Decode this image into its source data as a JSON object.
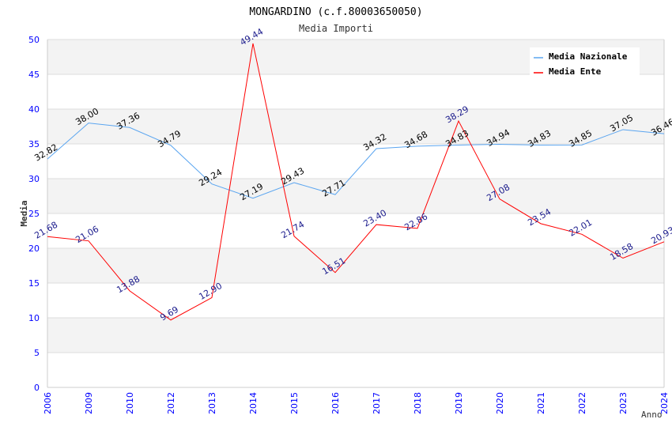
{
  "chart_data": {
    "type": "line",
    "title": "MONGARDINO (c.f.80003650050)",
    "subtitle": "Media Importi",
    "xlabel": "Anno",
    "ylabel": "Media",
    "ylim": [
      0,
      50
    ],
    "yticks": [
      0,
      5,
      10,
      15,
      20,
      25,
      30,
      35,
      40,
      45,
      50
    ],
    "categories": [
      "2006",
      "2009",
      "2010",
      "2012",
      "2013",
      "2014",
      "2015",
      "2016",
      "2017",
      "2018",
      "2019",
      "2020",
      "2021",
      "2022",
      "2023",
      "2024"
    ],
    "series": [
      {
        "name": "Media Nazionale",
        "color": "#5aa5f0",
        "label_color": "#000000",
        "values": [
          32.82,
          38.0,
          37.36,
          34.79,
          29.24,
          27.19,
          29.43,
          27.71,
          34.32,
          34.68,
          34.83,
          34.94,
          34.83,
          34.85,
          37.05,
          36.46
        ]
      },
      {
        "name": "Media Ente",
        "color": "#ff0000",
        "label_color": "#1a1a8c",
        "values": [
          21.68,
          21.06,
          13.88,
          9.69,
          12.9,
          49.44,
          21.74,
          16.51,
          23.4,
          22.86,
          38.29,
          27.08,
          23.54,
          22.01,
          18.58,
          20.93
        ]
      }
    ],
    "grid": true,
    "legend_position": "top-right"
  }
}
